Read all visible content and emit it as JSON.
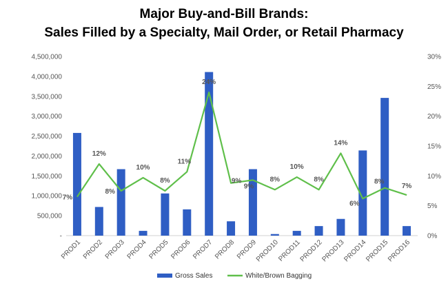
{
  "chart_data": {
    "type": "bar",
    "title_line1": "Major Buy-and-Bill Brands:",
    "title_line2": "Sales Filled by a Specialty, Mail Order, or Retail Pharmacy",
    "categories": [
      "PROD1",
      "PROD2",
      "PROD3",
      "PROD4",
      "PROD5",
      "PROD6",
      "PROD7",
      "PROD8",
      "PROD9",
      "PROD10",
      "PROD11",
      "PROD12",
      "PROD13",
      "PROD14",
      "PROD15",
      "PROD16"
    ],
    "series": [
      {
        "name": "Gross Sales",
        "type": "bar",
        "axis": "left",
        "color": "#2f5ec4",
        "values": [
          2580000,
          720000,
          1670000,
          120000,
          1060000,
          660000,
          4110000,
          360000,
          1670000,
          40000,
          120000,
          240000,
          420000,
          2140000,
          3460000,
          240000
        ]
      },
      {
        "name": "White/Brown Bagging",
        "type": "line",
        "axis": "right",
        "color": "#5fbf4a",
        "values": [
          6.5,
          12,
          7.5,
          9.7,
          7.5,
          10.7,
          24,
          8.8,
          9.3,
          7.7,
          9.8,
          7.7,
          13.8,
          6.2,
          8,
          6.8
        ]
      }
    ],
    "data_labels": [
      "7%",
      "12%",
      "8%",
      "10%",
      "8%",
      "11%",
      "24%",
      "9%",
      "9%",
      "8%",
      "10%",
      "8%",
      "14%",
      "6%",
      "8%",
      "7%"
    ],
    "y_left": {
      "ylim": [
        0,
        4500000
      ],
      "ticks": [
        "-",
        "500,000",
        "1,000,000",
        "1,500,000",
        "2,000,000",
        "2,500,000",
        "3,000,000",
        "3,500,000",
        "4,000,000",
        "4,500,000"
      ]
    },
    "y_right": {
      "ylim": [
        0,
        30
      ],
      "ticks": [
        "0%",
        "5%",
        "10%",
        "15%",
        "20%",
        "25%",
        "30%"
      ]
    },
    "grid": false,
    "legend_placement": "bottom-center"
  }
}
